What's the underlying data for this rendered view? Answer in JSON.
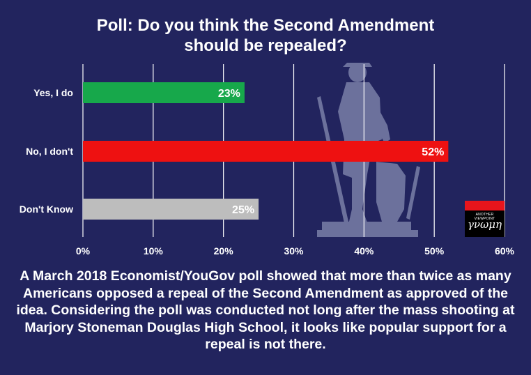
{
  "title_lines": [
    "Poll: Do you think the Second Amendment",
    "should be repealed?"
  ],
  "chart_data": {
    "type": "bar",
    "orientation": "horizontal",
    "categories": [
      "Yes, I do",
      "No, I don't",
      "Don't Know"
    ],
    "values": [
      23,
      52,
      25
    ],
    "data_labels": [
      "23%",
      "52%",
      "25%"
    ],
    "bar_colors": [
      "#17a84b",
      "#ee1111",
      "#bdbdbd"
    ],
    "xlim": [
      0,
      60
    ],
    "x_ticks": [
      0,
      10,
      20,
      30,
      40,
      50,
      60
    ],
    "x_tick_labels": [
      "0%",
      "10%",
      "20%",
      "30%",
      "40%",
      "50%",
      "60%"
    ],
    "grid": "vertical gridlines",
    "background": "#22245e"
  },
  "logo": {
    "small_text": "ANOTHER VIEWPOINT",
    "word": "γνωμη"
  },
  "caption": "A March 2018 Economist/YouGov poll showed that more than twice as many Americans opposed a repeal of the Second Amendment as approved of the idea. Considering the poll was conducted not long after the mass shooting at Marjory Stoneman Douglas High School, it looks like popular support for a repeal is not there.",
  "illustration": "minuteman-statue silhouette"
}
